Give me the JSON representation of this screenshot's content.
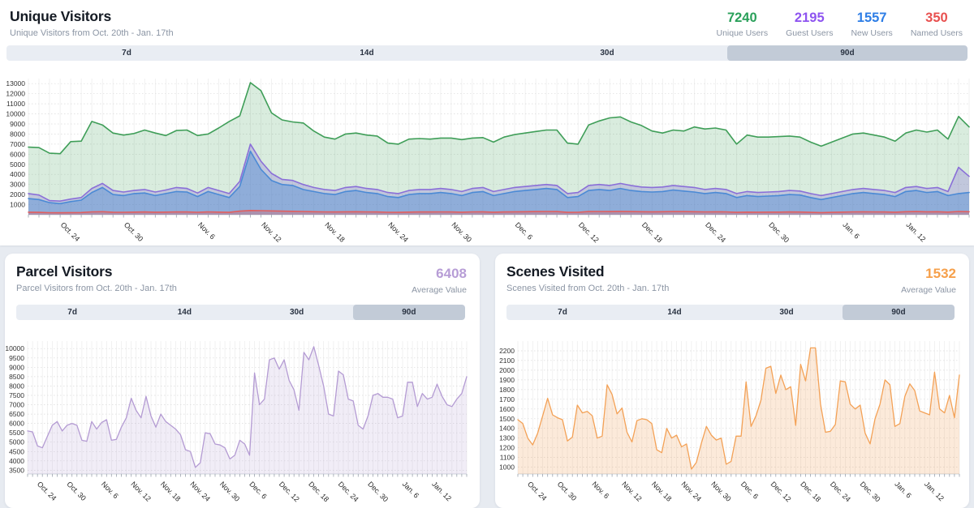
{
  "unique_visitors": {
    "title": "Unique Visitors",
    "subtitle": "Unique Visitors from Oct. 20th - Jan. 17th",
    "stats": [
      {
        "value": "7240",
        "label": "Unique Users",
        "color": "#2aa05a"
      },
      {
        "value": "2195",
        "label": "Guest Users",
        "color": "#8e54f0"
      },
      {
        "value": "1557",
        "label": "New Users",
        "color": "#2e7ee6"
      },
      {
        "value": "350",
        "label": "Named Users",
        "color": "#e8504f"
      }
    ],
    "tabs": {
      "options": [
        "7d",
        "14d",
        "30d",
        "90d"
      ],
      "selected": "90d"
    },
    "chart_data": {
      "type": "area",
      "title": "Unique Visitors",
      "x_tick_labels": [
        "Oct. 24",
        "Oct. 30",
        "Nov. 6",
        "Nov. 12",
        "Nov. 18",
        "Nov. 24",
        "Nov. 30",
        "Dec. 6",
        "Dec. 12",
        "Dec. 18",
        "Dec. 24",
        "Dec. 30",
        "Jan. 6",
        "Jan. 12"
      ],
      "x_tick_days": [
        4,
        10,
        17,
        23,
        29,
        35,
        41,
        47,
        53,
        59,
        65,
        71,
        78,
        84
      ],
      "ylim": [
        0,
        13500
      ],
      "y_ticks": {
        "min": 1000,
        "max": 13000,
        "step": 1000
      },
      "grid": true,
      "legend": "none",
      "series": [
        {
          "name": "Unique Users",
          "color": "#3f9e58",
          "fill_opacity": 0.2,
          "values": [
            6700,
            6650,
            6100,
            6050,
            7250,
            7300,
            9250,
            8900,
            8100,
            7900,
            8050,
            8400,
            8100,
            7850,
            8350,
            8400,
            7850,
            8000,
            8600,
            9250,
            9800,
            13100,
            12300,
            10100,
            9400,
            9200,
            9100,
            8300,
            7700,
            7500,
            8000,
            8100,
            7900,
            7800,
            7100,
            7000,
            7500,
            7550,
            7500,
            7600,
            7600,
            7450,
            7600,
            7650,
            7200,
            7700,
            7950,
            8100,
            8250,
            8400,
            8400,
            7100,
            7000,
            8900,
            9300,
            9600,
            9700,
            9200,
            8850,
            8300,
            8100,
            8400,
            8300,
            8700,
            8500,
            8600,
            8400,
            7000,
            7900,
            7700,
            7700,
            7750,
            7800,
            7700,
            7200,
            6800,
            7200,
            7600,
            8000,
            8100,
            7900,
            7700,
            7300,
            8100,
            8400,
            8200,
            8400,
            7500,
            9750,
            8700
          ]
        },
        {
          "name": "Guest Users",
          "color": "#8a6fd8",
          "fill_opacity": 0.3,
          "values": [
            2100,
            1950,
            1400,
            1350,
            1550,
            1700,
            2600,
            3100,
            2400,
            2250,
            2400,
            2500,
            2250,
            2450,
            2700,
            2600,
            2150,
            2700,
            2400,
            2100,
            3300,
            7000,
            5300,
            4100,
            3500,
            3400,
            3000,
            2700,
            2500,
            2400,
            2700,
            2800,
            2600,
            2500,
            2200,
            2100,
            2400,
            2500,
            2500,
            2600,
            2500,
            2300,
            2600,
            2700,
            2300,
            2500,
            2700,
            2800,
            2900,
            3000,
            2900,
            2100,
            2200,
            2900,
            3000,
            2900,
            3100,
            2900,
            2750,
            2700,
            2750,
            2900,
            2800,
            2700,
            2500,
            2600,
            2500,
            2100,
            2300,
            2200,
            2250,
            2300,
            2400,
            2350,
            2100,
            1900,
            2100,
            2300,
            2500,
            2600,
            2500,
            2400,
            2200,
            2700,
            2800,
            2600,
            2700,
            2300,
            4700,
            3800
          ]
        },
        {
          "name": "New Users",
          "color": "#4b8ad5",
          "fill_opacity": 0.42,
          "values": [
            1600,
            1500,
            1200,
            1100,
            1300,
            1450,
            2200,
            2700,
            2000,
            1900,
            2100,
            2150,
            1900,
            2100,
            2300,
            2250,
            1800,
            2300,
            2000,
            1700,
            2800,
            6300,
            4500,
            3400,
            3000,
            2900,
            2500,
            2300,
            2100,
            2000,
            2300,
            2400,
            2200,
            2100,
            1800,
            1700,
            2000,
            2100,
            2100,
            2200,
            2100,
            1900,
            2200,
            2300,
            1900,
            2100,
            2300,
            2400,
            2500,
            2600,
            2500,
            1700,
            1800,
            2400,
            2500,
            2400,
            2600,
            2400,
            2300,
            2250,
            2300,
            2450,
            2350,
            2250,
            2100,
            2200,
            2100,
            1700,
            1900,
            1800,
            1850,
            1900,
            2000,
            1950,
            1700,
            1500,
            1700,
            1900,
            2100,
            2200,
            2100,
            2000,
            1800,
            2300,
            2400,
            2200,
            2300,
            1900,
            2100,
            2200
          ]
        },
        {
          "name": "Named Users",
          "color": "#e25e5e",
          "fill_opacity": 0.35,
          "values": [
            250,
            230,
            200,
            190,
            210,
            220,
            280,
            300,
            250,
            240,
            260,
            270,
            250,
            260,
            280,
            270,
            240,
            280,
            260,
            230,
            350,
            420,
            400,
            380,
            350,
            340,
            320,
            300,
            280,
            270,
            290,
            300,
            280,
            270,
            240,
            230,
            260,
            270,
            270,
            280,
            270,
            250,
            280,
            290,
            250,
            270,
            290,
            300,
            310,
            320,
            310,
            230,
            240,
            310,
            320,
            310,
            330,
            310,
            300,
            290,
            300,
            320,
            310,
            300,
            280,
            290,
            280,
            230,
            260,
            250,
            255,
            260,
            270,
            265,
            230,
            210,
            230,
            260,
            280,
            290,
            280,
            270,
            250,
            300,
            310,
            290,
            300,
            260,
            320,
            300
          ]
        }
      ]
    }
  },
  "parcel_visitors": {
    "title": "Parcel Visitors",
    "subtitle": "Parcel Visitors from Oct. 20th - Jan. 17th",
    "summary": {
      "value": "6408",
      "label": "Average Value",
      "color": "#b79dd6"
    },
    "tabs": {
      "options": [
        "7d",
        "14d",
        "30d",
        "90d"
      ],
      "selected": "90d"
    },
    "chart_data": {
      "type": "area",
      "title": "Parcel Visitors",
      "x_tick_labels": [
        "Oct. 24",
        "Oct. 30",
        "Nov. 6",
        "Nov. 12",
        "Nov. 18",
        "Nov. 24",
        "Nov. 30",
        "Dec. 6",
        "Dec. 12",
        "Dec. 18",
        "Dec. 24",
        "Dec. 30",
        "Jan. 6",
        "Jan. 12"
      ],
      "x_tick_days": [
        4,
        10,
        17,
        23,
        29,
        35,
        41,
        47,
        53,
        59,
        65,
        71,
        78,
        84
      ],
      "ylim": [
        3300,
        10400
      ],
      "y_ticks": {
        "min": 3500,
        "max": 10000,
        "step": 500
      },
      "grid": true,
      "legend": "none",
      "series": [
        {
          "name": "Parcel Visitors",
          "color": "#b49bd3",
          "fill_opacity": 0.18,
          "values": [
            5600,
            5550,
            4800,
            4700,
            5300,
            5900,
            6100,
            5600,
            5900,
            6000,
            5900,
            5100,
            5050,
            6100,
            5700,
            6050,
            6200,
            5100,
            5150,
            5800,
            6300,
            7350,
            6700,
            6300,
            7450,
            6400,
            5800,
            6500,
            6100,
            5900,
            5700,
            5400,
            4600,
            4500,
            3650,
            3900,
            5500,
            5450,
            4900,
            4850,
            4700,
            4100,
            4300,
            5100,
            4900,
            4300,
            8700,
            7000,
            7300,
            9400,
            9500,
            8900,
            9400,
            8300,
            7800,
            6700,
            9800,
            9400,
            10100,
            9100,
            8000,
            6500,
            6400,
            8800,
            8600,
            7300,
            7200,
            5900,
            5700,
            6400,
            7500,
            7600,
            7400,
            7400,
            7300,
            6300,
            6400,
            8200,
            8200,
            6900,
            7600,
            7300,
            7400,
            8100,
            7450,
            7000,
            6900,
            7300,
            7600,
            8500
          ]
        }
      ]
    }
  },
  "scenes_visited": {
    "title": "Scenes Visited",
    "subtitle": "Scenes Visited from Oct. 20th - Jan. 17th",
    "summary": {
      "value": "1532",
      "label": "Average Value",
      "color": "#f6a04b"
    },
    "tabs": {
      "options": [
        "7d",
        "14d",
        "30d",
        "90d"
      ],
      "selected": "90d"
    },
    "chart_data": {
      "type": "area",
      "title": "Scenes Visited",
      "x_tick_labels": [
        "Oct. 24",
        "Oct. 30",
        "Nov. 6",
        "Nov. 12",
        "Nov. 18",
        "Nov. 24",
        "Nov. 30",
        "Dec. 6",
        "Dec. 12",
        "Dec. 18",
        "Dec. 24",
        "Dec. 30",
        "Jan. 6",
        "Jan. 12"
      ],
      "x_tick_days": [
        4,
        10,
        17,
        23,
        29,
        35,
        41,
        47,
        53,
        59,
        65,
        71,
        78,
        84
      ],
      "ylim": [
        930,
        2300
      ],
      "y_ticks": {
        "min": 1000,
        "max": 2200,
        "step": 100
      },
      "grid": true,
      "legend": "none",
      "series": [
        {
          "name": "Scenes Visited",
          "color": "#f3a156",
          "fill_opacity": 0.22,
          "values": [
            1490,
            1450,
            1300,
            1230,
            1350,
            1530,
            1710,
            1540,
            1510,
            1490,
            1270,
            1310,
            1640,
            1560,
            1575,
            1530,
            1300,
            1320,
            1850,
            1750,
            1550,
            1610,
            1360,
            1260,
            1480,
            1500,
            1490,
            1450,
            1180,
            1150,
            1400,
            1300,
            1330,
            1210,
            1240,
            980,
            1050,
            1250,
            1420,
            1330,
            1280,
            1300,
            1030,
            1060,
            1320,
            1320,
            1880,
            1420,
            1530,
            1690,
            2020,
            2040,
            1760,
            1950,
            1800,
            1830,
            1430,
            2060,
            1890,
            2230,
            2230,
            1650,
            1360,
            1370,
            1440,
            1890,
            1880,
            1650,
            1600,
            1640,
            1350,
            1240,
            1500,
            1650,
            1900,
            1850,
            1420,
            1450,
            1730,
            1860,
            1790,
            1580,
            1560,
            1540,
            1980,
            1600,
            1560,
            1740,
            1510,
            1950
          ]
        }
      ]
    }
  }
}
